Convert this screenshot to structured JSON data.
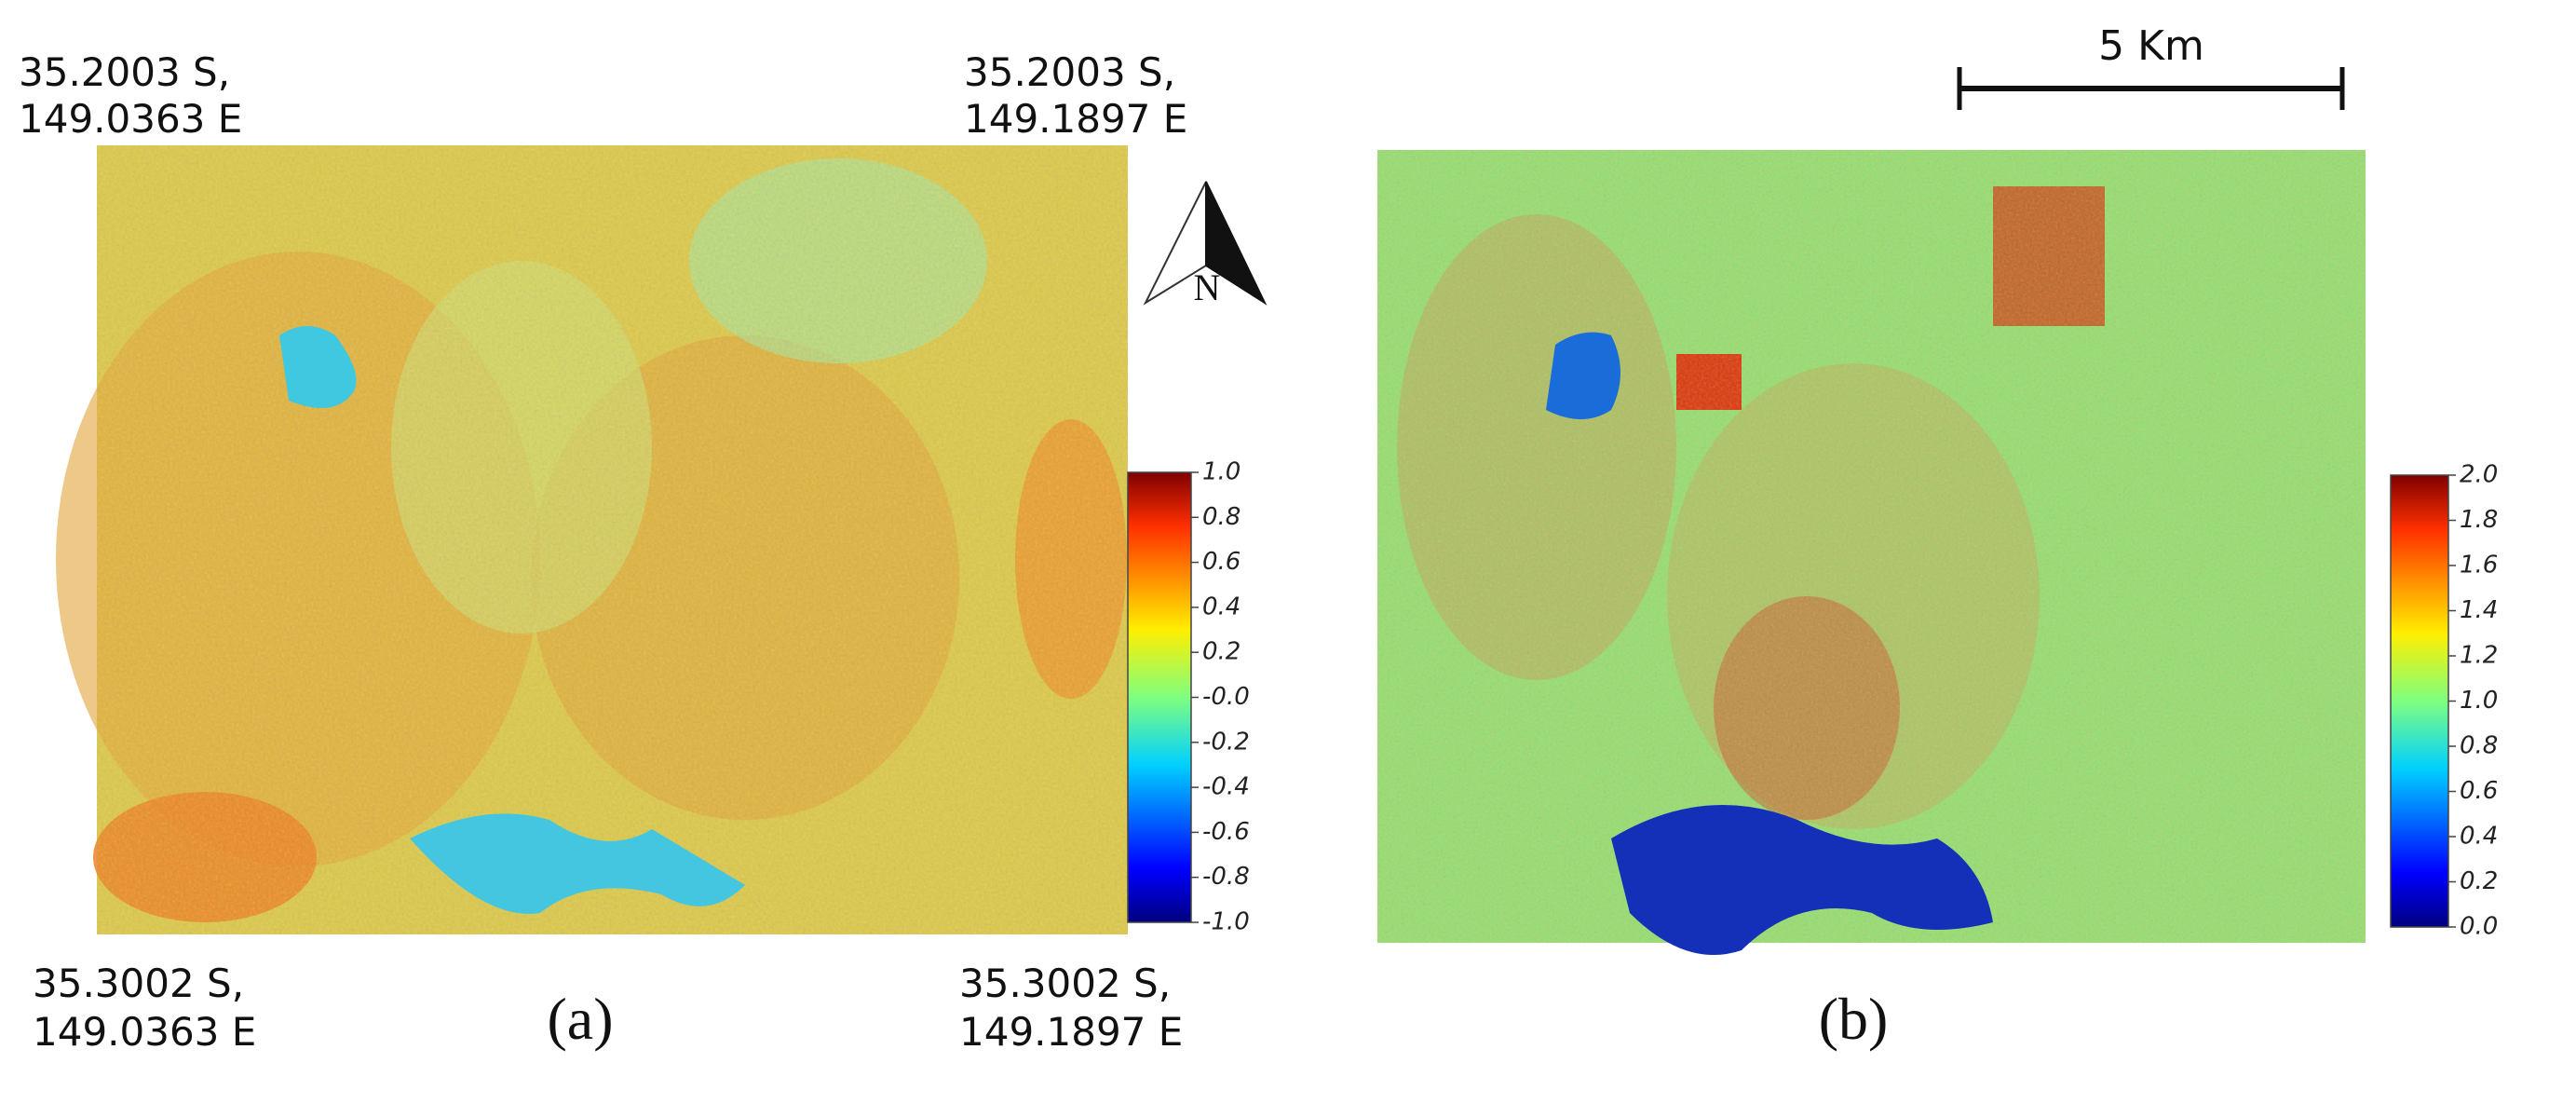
{
  "panel_a": {
    "label": "(a)",
    "corners": {
      "top_left": [
        "35.2003 S,",
        "149.0363 E"
      ],
      "top_right": [
        "35.2003 S,",
        "149.1897 E"
      ],
      "bottom_left": [
        "35.3002 S,",
        "149.0363 E"
      ],
      "bottom_right": [
        "35.3002 S,",
        "149.1897 E"
      ]
    },
    "colorbar_ticks": [
      "1.0",
      "0.8",
      "0.6",
      "0.4",
      "0.2",
      "-0.0",
      "-0.2",
      "-0.4",
      "-0.6",
      "-0.8",
      "-1.0"
    ]
  },
  "panel_b": {
    "label": "(b)",
    "colorbar_ticks": [
      "2.0",
      "1.8",
      "1.6",
      "1.4",
      "1.2",
      "1.0",
      "0.8",
      "0.6",
      "0.4",
      "0.2",
      "0.0"
    ]
  },
  "scale_bar": "5 Km",
  "north_arrow": "N"
}
